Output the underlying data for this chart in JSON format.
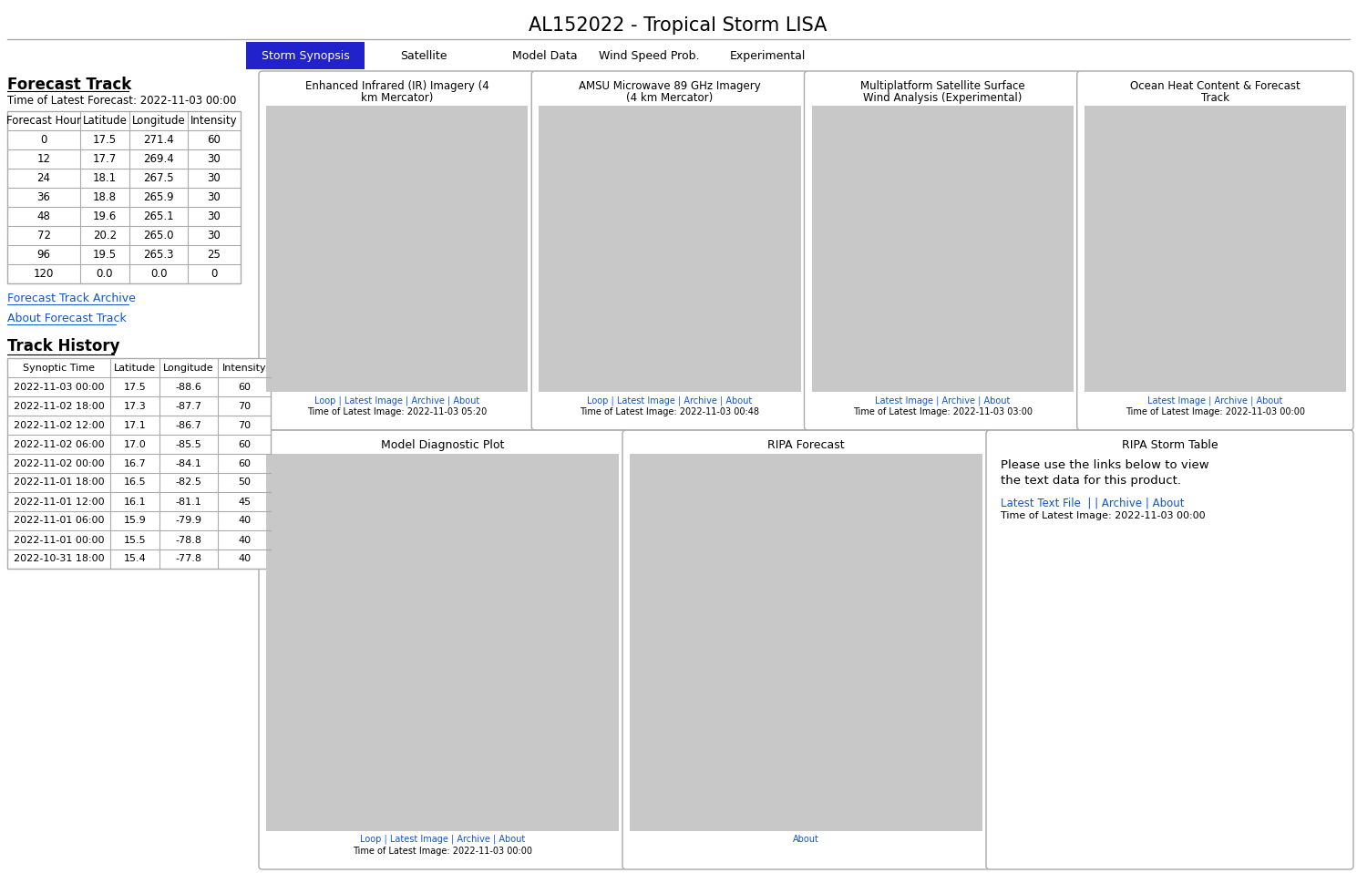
{
  "title": "AL152022 - Tropical Storm LISA",
  "nav_tabs": [
    "Storm Synopsis",
    "Satellite",
    "Model Data",
    "Wind Speed Prob.",
    "Experimental"
  ],
  "active_tab": "Storm Synopsis",
  "active_tab_color": "#2222cc",
  "forecast_track_title": "Forecast Track",
  "forecast_time_label": "Time of Latest Forecast: 2022-11-03 00:00",
  "forecast_table_headers": [
    "Forecast Hour",
    "Latitude",
    "Longitude",
    "Intensity"
  ],
  "forecast_table_data": [
    [
      0,
      17.5,
      271.4,
      60
    ],
    [
      12,
      17.7,
      269.4,
      30
    ],
    [
      24,
      18.1,
      267.5,
      30
    ],
    [
      36,
      18.8,
      265.9,
      30
    ],
    [
      48,
      19.6,
      265.1,
      30
    ],
    [
      72,
      20.2,
      265.0,
      30
    ],
    [
      96,
      19.5,
      265.3,
      25
    ],
    [
      120,
      0.0,
      0.0,
      0
    ]
  ],
  "forecast_track_archive_link": "Forecast Track Archive",
  "about_forecast_track_link": "About Forecast Track",
  "track_history_title": "Track History",
  "track_history_headers": [
    "Synoptic Time",
    "Latitude",
    "Longitude",
    "Intensity"
  ],
  "track_history_data": [
    [
      "2022-11-03 00:00",
      17.5,
      -88.6,
      60
    ],
    [
      "2022-11-02 18:00",
      17.3,
      -87.7,
      70
    ],
    [
      "2022-11-02 12:00",
      17.1,
      -86.7,
      70
    ],
    [
      "2022-11-02 06:00",
      17.0,
      -85.5,
      60
    ],
    [
      "2022-11-02 00:00",
      16.7,
      -84.1,
      60
    ],
    [
      "2022-11-01 18:00",
      16.5,
      -82.5,
      50
    ],
    [
      "2022-11-01 12:00",
      16.1,
      -81.1,
      45
    ],
    [
      "2022-11-01 06:00",
      15.9,
      -79.9,
      40
    ],
    [
      "2022-11-01 00:00",
      15.5,
      -78.8,
      40
    ],
    [
      "2022-10-31 18:00",
      15.4,
      -77.8,
      40
    ]
  ],
  "top_panels": [
    {
      "title": "Enhanced Infrared (IR) Imagery (4\nkm Mercator)",
      "link_line": "Loop | Latest Image | Archive | About",
      "time_line": "Time of Latest Image: 2022-11-03 05:20"
    },
    {
      "title": "AMSU Microwave 89 GHz Imagery\n(4 km Mercator)",
      "link_line": "Loop | Latest Image | Archive | About",
      "time_line": "Time of Latest Image: 2022-11-03 00:48"
    },
    {
      "title": "Multiplatform Satellite Surface\nWind Analysis (Experimental)",
      "link_line": "Latest Image | Archive | About",
      "time_line": "Time of Latest Image: 2022-11-03 03:00"
    },
    {
      "title": "Ocean Heat Content & Forecast\nTrack",
      "link_line": "Latest Image | Archive | About",
      "time_line": "Time of Latest Image: 2022-11-03 00:00"
    }
  ],
  "bottom_panels": [
    {
      "title": "Model Diagnostic Plot",
      "link_line": "Loop | Latest Image | Archive | About",
      "time_line": "Time of Latest Image: 2022-11-03 00:00",
      "type": "image"
    },
    {
      "title": "RIPA Forecast",
      "link_line": "About",
      "time_line": "",
      "type": "image"
    },
    {
      "title": "RIPA Storm Table",
      "body_text": "Please use the links below to view\nthe text data for this product.",
      "link_line": "Latest Text File  | | Archive | About",
      "time_line": "Time of Latest Image: 2022-11-03 00:00",
      "type": "text"
    }
  ],
  "link_color": "#1155cc",
  "text_color": "#000000",
  "bg_color": "#ffffff",
  "table_border_color": "#aaaaaa",
  "panel_border_color": "#aaaaaa",
  "header_line_color": "#aaaaaa",
  "separator_line_color": "#aaaaaa"
}
